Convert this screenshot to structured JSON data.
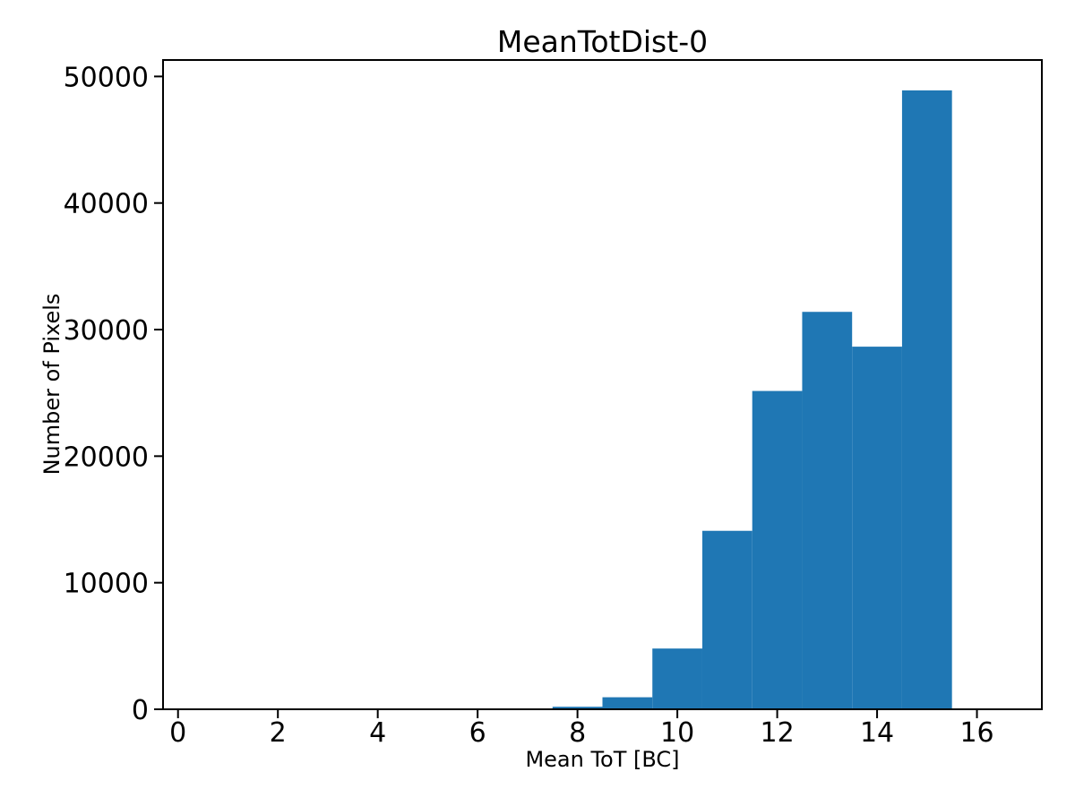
{
  "chart_data": {
    "type": "histogram",
    "title": "MeanTotDist-0",
    "xlabel": "Mean ToT [BC]",
    "ylabel": "Number of Pixels",
    "bar_color": "#1f77b4",
    "axis_color": "#000000",
    "background_color": "#ffffff",
    "grid": false,
    "legend": null,
    "xlim": [
      -0.3,
      17.3
    ],
    "ylim": [
      0,
      51300
    ],
    "xticks": [
      0,
      2,
      4,
      6,
      8,
      10,
      12,
      14,
      16
    ],
    "yticks": [
      0,
      10000,
      20000,
      30000,
      40000,
      50000
    ],
    "bin_width": 1,
    "bin_centers": [
      8,
      9,
      10,
      11,
      12,
      13,
      14,
      15
    ],
    "counts": [
      200,
      950,
      4800,
      14100,
      25150,
      31400,
      28650,
      48900
    ]
  }
}
